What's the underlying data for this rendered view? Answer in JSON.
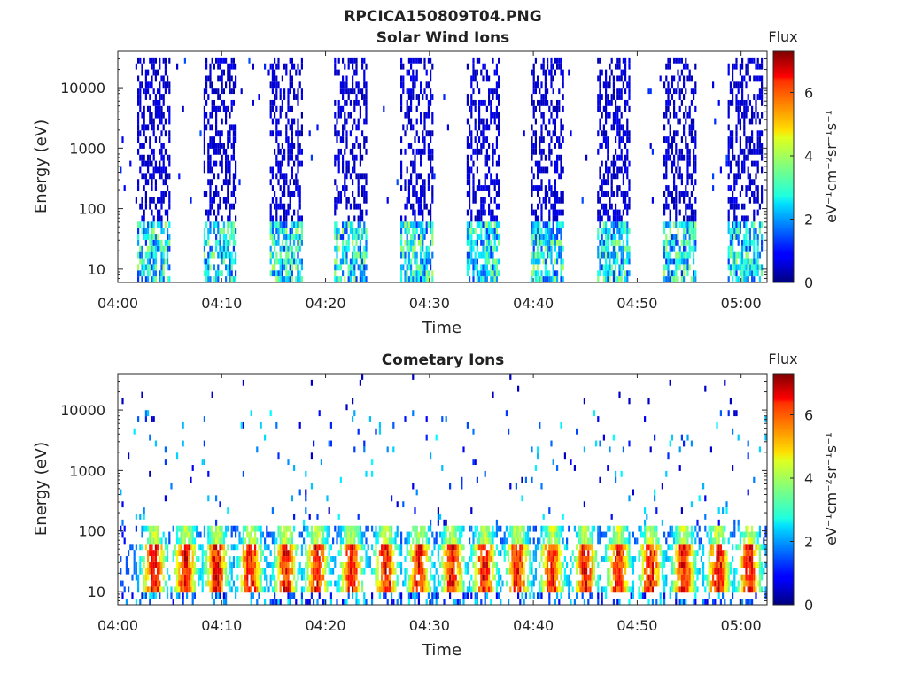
{
  "figure_title": "RPCICA150809T04.PNG",
  "colorbar": {
    "label": "Flux",
    "unit_label": "eV⁻¹cm⁻²sr⁻¹s⁻¹",
    "ticks": [
      "0",
      "2",
      "4",
      "6"
    ],
    "range": [
      0,
      7.3
    ],
    "colormap": "jet"
  },
  "chart_data": [
    {
      "type": "heatmap",
      "title": "Solar Wind Ions",
      "xlabel": "Time",
      "ylabel": "Energy (eV)",
      "x_ticks": [
        "04:00",
        "04:10",
        "04:20",
        "04:30",
        "04:40",
        "04:50",
        "05:00"
      ],
      "y_ticks": [
        "10",
        "100",
        "1000",
        "10000"
      ],
      "y_scale": "log",
      "ylim": [
        6,
        40000
      ],
      "xlim_minutes": [
        0,
        62.5
      ],
      "bursts_start_minutes": [
        1.8,
        8.2,
        14.6,
        20.8,
        27.2,
        33.6,
        39.8,
        46.2,
        52.6,
        58.8
      ],
      "burst_duration_minutes": 3.2,
      "peak_flux": 4.8
    },
    {
      "type": "heatmap",
      "title": "Cometary Ions",
      "xlabel": "Time",
      "ylabel": "Energy (eV)",
      "x_ticks": [
        "04:00",
        "04:10",
        "04:20",
        "04:30",
        "04:40",
        "04:50",
        "05:00"
      ],
      "y_ticks": [
        "10",
        "100",
        "1000",
        "10000"
      ],
      "y_scale": "log",
      "ylim": [
        6,
        40000
      ],
      "xlim_minutes": [
        0,
        62.5
      ],
      "core_energy_range_eV": [
        10,
        100
      ],
      "core_peak_minutes": [
        3.5,
        6.5,
        9.5,
        12.8,
        16.2,
        19.2,
        22.5,
        25.8,
        29.0,
        32.2,
        35.3,
        38.5,
        41.8,
        45.0,
        48.2,
        51.3,
        54.5,
        57.8,
        60.8
      ],
      "peak_flux": 7.2
    }
  ]
}
